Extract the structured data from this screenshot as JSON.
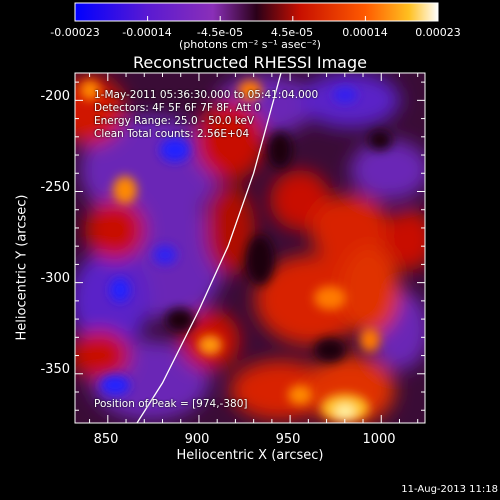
{
  "colorbar": {
    "ticks": [
      "-0.00023",
      "-0.00014",
      "-4.5e-05",
      "4.5e-05",
      "0.00014",
      "0.00023"
    ],
    "unit": "(photons cm⁻² s⁻¹ asec⁻²)",
    "vmin": -0.00023,
    "vmax": 0.00023,
    "colors": [
      "#0000ff",
      "#5a1ad2",
      "#8a2fb8",
      "#2a0018",
      "#c81000",
      "#ff5a00",
      "#ffc020",
      "#ffffff"
    ]
  },
  "chart_data": {
    "type": "heatmap",
    "title": "Reconstructed RHESSI Image",
    "xlabel": "Heliocentric X (arcsec)",
    "ylabel": "Heliocentric Y (arcsec)",
    "xlim": [
      832,
      1024
    ],
    "ylim": [
      -377,
      -185
    ],
    "xticks": [
      "850",
      "900",
      "950",
      "1000"
    ],
    "yticks": [
      "-200",
      "-250",
      "-300",
      "-350"
    ],
    "xtick_values": [
      850,
      900,
      950,
      1000
    ],
    "ytick_values": [
      -200,
      -250,
      -300,
      -350
    ],
    "limb_curve": [
      [
        866,
        -377
      ],
      [
        880,
        -355
      ],
      [
        900,
        -315
      ],
      [
        916,
        -280
      ],
      [
        930,
        -240
      ],
      [
        945,
        -185
      ]
    ],
    "peak": {
      "x": 974,
      "y": -380
    },
    "info": {
      "time": "1-May-2011 05:36:30.000 to 05:41:04.000",
      "detectors": "Detectors: 4F 5F 6F 7F 8F, Att 0",
      "energy": "Energy Range: 25.0 - 50.0 keV",
      "method": "Clean    Total counts: 2.56E+04",
      "peak_label": "Position of Peak = [974,-380]"
    }
  },
  "footer": {
    "date": "11-Aug-2013 11:18"
  }
}
